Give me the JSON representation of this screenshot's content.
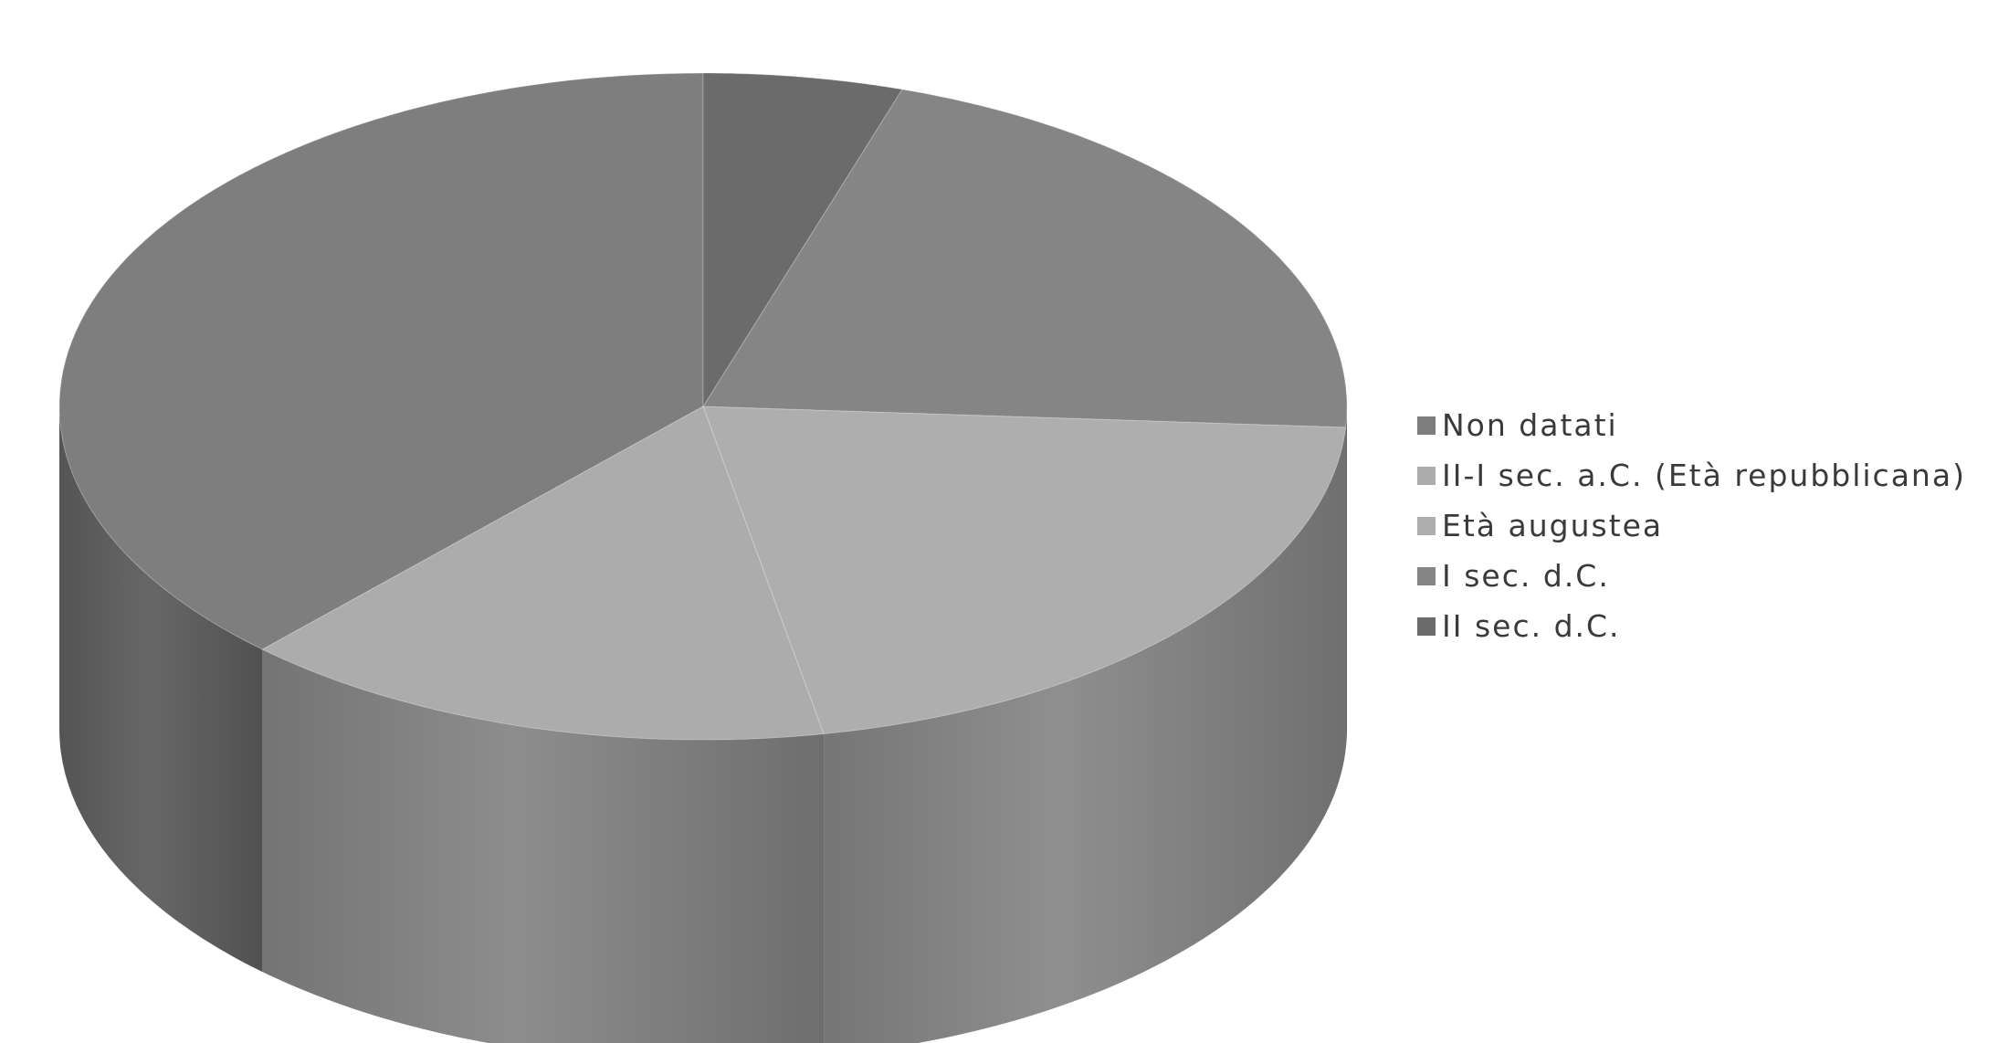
{
  "chart_data": {
    "type": "pie",
    "style": "3d",
    "categories": [
      "Non datati",
      "II-I sec. a.C. (Età repubblicana)",
      "Età augustea",
      "I sec. d.C.",
      "II sec. d.C."
    ],
    "values": [
      38,
      15,
      21,
      21,
      5
    ],
    "colors": [
      "#7e7e7e",
      "#acacac",
      "#aeaeae",
      "#858585",
      "#6b6b6b"
    ],
    "legend": "right"
  }
}
